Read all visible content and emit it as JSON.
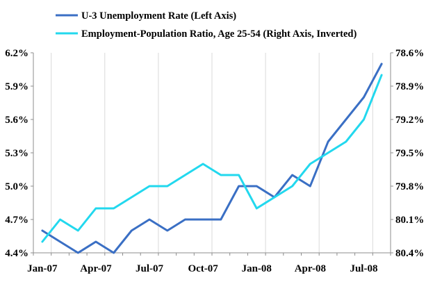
{
  "chart_data": {
    "type": "line",
    "title": "",
    "x": [
      "Jan-07",
      "Feb-07",
      "Mar-07",
      "Apr-07",
      "May-07",
      "Jun-07",
      "Jul-07",
      "Aug-07",
      "Sep-07",
      "Oct-07",
      "Nov-07",
      "Dec-07",
      "Jan-08",
      "Feb-08",
      "Mar-08",
      "Apr-08",
      "May-08",
      "Jun-08",
      "Jul-08",
      "Aug-08"
    ],
    "x_tick_labels": [
      "Jan-07",
      "Apr-07",
      "Jul-07",
      "Oct-07",
      "Jan-08",
      "Apr-08",
      "Jul-08"
    ],
    "series": [
      {
        "name": "U-3 Unemployment Rate (Left Axis)",
        "axis": "left",
        "color": "#3a6fc4",
        "values": [
          4.6,
          4.5,
          4.4,
          4.5,
          4.4,
          4.6,
          4.7,
          4.6,
          4.7,
          4.7,
          4.7,
          5.0,
          5.0,
          4.9,
          5.1,
          5.0,
          5.4,
          5.6,
          5.8,
          6.1
        ]
      },
      {
        "name": "Employment-Population Ratio, Age 25-54 (Right Axis, Inverted)",
        "axis": "right",
        "color": "#22d8ee",
        "values": [
          80.3,
          80.1,
          80.2,
          80.0,
          80.0,
          79.9,
          79.8,
          79.8,
          79.7,
          79.6,
          79.7,
          79.7,
          80.0,
          79.9,
          79.8,
          79.6,
          79.5,
          79.4,
          79.2,
          78.8
        ]
      }
    ],
    "left_axis": {
      "ylim": [
        4.4,
        6.2
      ],
      "ticks": [
        4.4,
        4.7,
        5.0,
        5.3,
        5.6,
        5.9,
        6.2
      ],
      "tick_labels": [
        "4.4%",
        "4.7%",
        "5.0%",
        "5.3%",
        "5.6%",
        "5.9%",
        "6.2%"
      ]
    },
    "right_axis": {
      "ylim": [
        78.6,
        80.4
      ],
      "inverted": true,
      "ticks": [
        78.6,
        78.9,
        79.2,
        79.5,
        79.8,
        80.1,
        80.4
      ],
      "tick_labels": [
        "78.6%",
        "78.9%",
        "79.2%",
        "79.5%",
        "79.8%",
        "80.1%",
        "80.4%"
      ]
    },
    "grid": {
      "vertical": true,
      "horizontal": false
    },
    "legend_position": "top"
  }
}
